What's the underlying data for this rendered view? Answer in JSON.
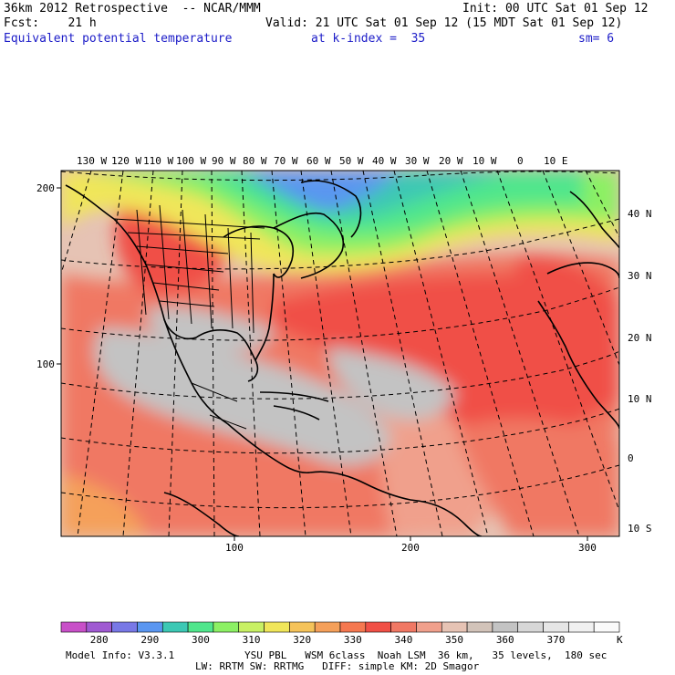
{
  "header": {
    "title": "36km 2012 Retrospective  -- NCAR/MMM",
    "init": "Init: 00 UTC Sat 01 Sep 12",
    "fcst": "Fcst:    21 h",
    "valid": "Valid: 21 UTC Sat 01 Sep 12 (15 MDT Sat 01 Sep 12)",
    "field": "Equivalent potential temperature",
    "level": "at k-index =  35",
    "smoothing": "sm= 6"
  },
  "map": {
    "lon_labels": [
      "130 W",
      "120 W",
      "110 W",
      "100 W",
      "90 W",
      "80 W",
      "70 W",
      "60 W",
      "50 W",
      "40 W",
      "30 W",
      "20 W",
      "10 W",
      "0",
      "10 E"
    ],
    "lat_labels": [
      "40 N",
      "30 N",
      "20 N",
      "10 N",
      "0",
      "10 S"
    ],
    "y_grid_labels": [
      "200",
      "100"
    ],
    "x_grid_labels": [
      "100",
      "200",
      "300"
    ]
  },
  "colorbar": {
    "labels": [
      "280",
      "290",
      "300",
      "310",
      "320",
      "330",
      "340",
      "350",
      "360",
      "370"
    ],
    "unit": "K",
    "colors": [
      "#c850c8",
      "#a05ad2",
      "#7878e6",
      "#5a96f0",
      "#3cc8b4",
      "#50e68c",
      "#8cf064",
      "#c8f064",
      "#f0e65a",
      "#f5c35a",
      "#f5a05a",
      "#f57850",
      "#f05046",
      "#f07864",
      "#f0a08c",
      "#e6c3b4",
      "#d2c3b9",
      "#c3c3c3",
      "#d7d7d7",
      "#e6e6e6",
      "#f0f0f0",
      "#fafafa"
    ]
  },
  "footer": {
    "model_info": "Model Info: V3.3.1",
    "physics1": "YSU PBL   WSM 6class  Noah LSM  36 km,   35 levels,  180 sec",
    "physics2": "LW: RRTM SW: RRTMG   DIFF: simple KM: 2D Smagor"
  }
}
